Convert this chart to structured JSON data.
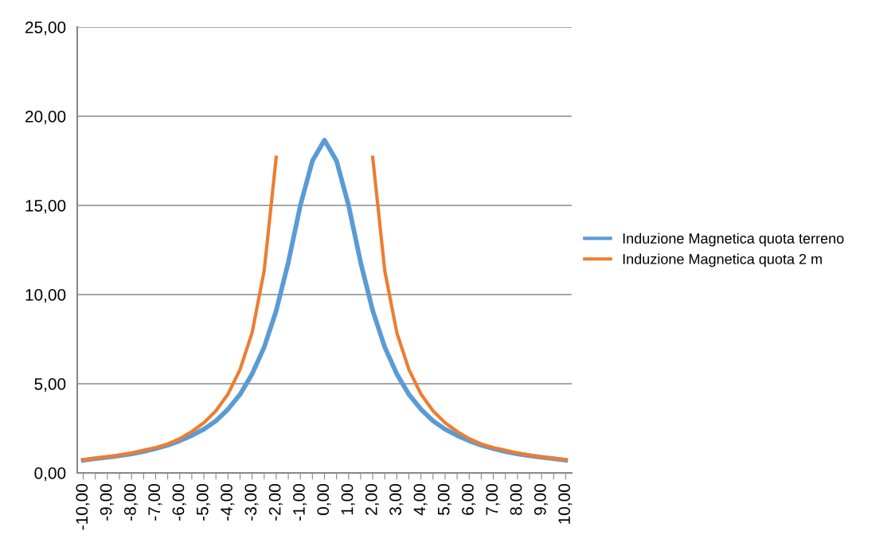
{
  "chart_data": {
    "type": "line",
    "categories": [
      "-10,00",
      null,
      "-9,00",
      null,
      "-8,00",
      null,
      "-7,00",
      null,
      "-6,00",
      null,
      "-5,00",
      null,
      "-4,00",
      null,
      "-3,00",
      null,
      "-2,00",
      null,
      "-1,00",
      null,
      "0,00",
      null,
      "1,00",
      null,
      "2,00",
      null,
      "3,00",
      null,
      "4,00",
      null,
      "5,00",
      null,
      "6,00",
      null,
      "7,00",
      null,
      "8,00",
      null,
      "9,00",
      null,
      "10,00"
    ],
    "series": [
      {
        "name": "Induzione Magnetica quota terreno",
        "color": "#5b9bd5",
        "values": [
          0.71,
          0.8,
          0.88,
          0.97,
          1.07,
          1.2,
          1.36,
          1.55,
          1.8,
          2.1,
          2.45,
          2.92,
          3.57,
          4.4,
          5.55,
          7.05,
          9.1,
          11.8,
          15.0,
          17.5,
          18.66,
          17.5,
          15.0,
          11.8,
          9.1,
          7.05,
          5.55,
          4.4,
          3.57,
          2.92,
          2.45,
          2.1,
          1.8,
          1.55,
          1.36,
          1.2,
          1.07,
          0.97,
          0.88,
          0.8,
          0.71
        ]
      },
      {
        "name": "Induzione Magnetica quota 2 m",
        "color": "#ed7d31",
        "values": [
          0.73,
          0.82,
          0.9,
          1.0,
          1.12,
          1.27,
          1.42,
          1.62,
          1.92,
          2.32,
          2.81,
          3.48,
          4.42,
          5.8,
          7.86,
          11.34,
          17.7,
          null,
          null,
          null,
          null,
          null,
          null,
          null,
          17.7,
          11.34,
          7.86,
          5.8,
          4.42,
          3.48,
          2.81,
          2.32,
          1.92,
          1.62,
          1.42,
          1.27,
          1.12,
          1.0,
          0.9,
          0.82,
          0.73
        ]
      }
    ],
    "ylim": [
      0,
      25
    ],
    "yticks": [
      {
        "value": 0,
        "label": "0,00"
      },
      {
        "value": 5,
        "label": "5,00"
      },
      {
        "value": 10,
        "label": "10,00"
      },
      {
        "value": 15,
        "label": "15,00"
      },
      {
        "value": 20,
        "label": "20,00"
      },
      {
        "value": 25,
        "label": "25,00"
      }
    ],
    "grid": "y",
    "legend": "right",
    "marker": "none",
    "line_style": "solid"
  }
}
